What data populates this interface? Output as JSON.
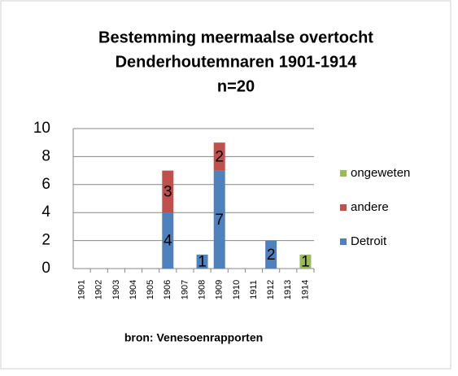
{
  "chart_data": {
    "type": "bar",
    "stacked": true,
    "title": [
      "Bestemming meermaalse overtocht",
      "Denderhoutemnaren 1901-1914",
      "n=20"
    ],
    "xlabel": "bron: Venesoenrapporten",
    "categories": [
      "1901",
      "1902",
      "1903",
      "1904",
      "1905",
      "1906",
      "1907",
      "1908",
      "1909",
      "1910",
      "1911",
      "1912",
      "1913",
      "1914"
    ],
    "series": [
      {
        "name": "Detroit",
        "color": "#4f81bd",
        "values": [
          null,
          null,
          null,
          null,
          null,
          4,
          null,
          1,
          7,
          null,
          null,
          2,
          null,
          null
        ]
      },
      {
        "name": "andere",
        "color": "#c0504d",
        "values": [
          null,
          null,
          null,
          null,
          null,
          3,
          null,
          null,
          2,
          null,
          null,
          null,
          null,
          null
        ]
      },
      {
        "name": "ongeweten",
        "color": "#9bbb59",
        "values": [
          null,
          null,
          null,
          null,
          null,
          null,
          null,
          null,
          null,
          null,
          null,
          null,
          null,
          1
        ]
      }
    ],
    "ylim": [
      0,
      10
    ],
    "yticks": [
      0,
      2,
      4,
      6,
      8,
      10
    ],
    "grid": true,
    "legend": "right"
  }
}
